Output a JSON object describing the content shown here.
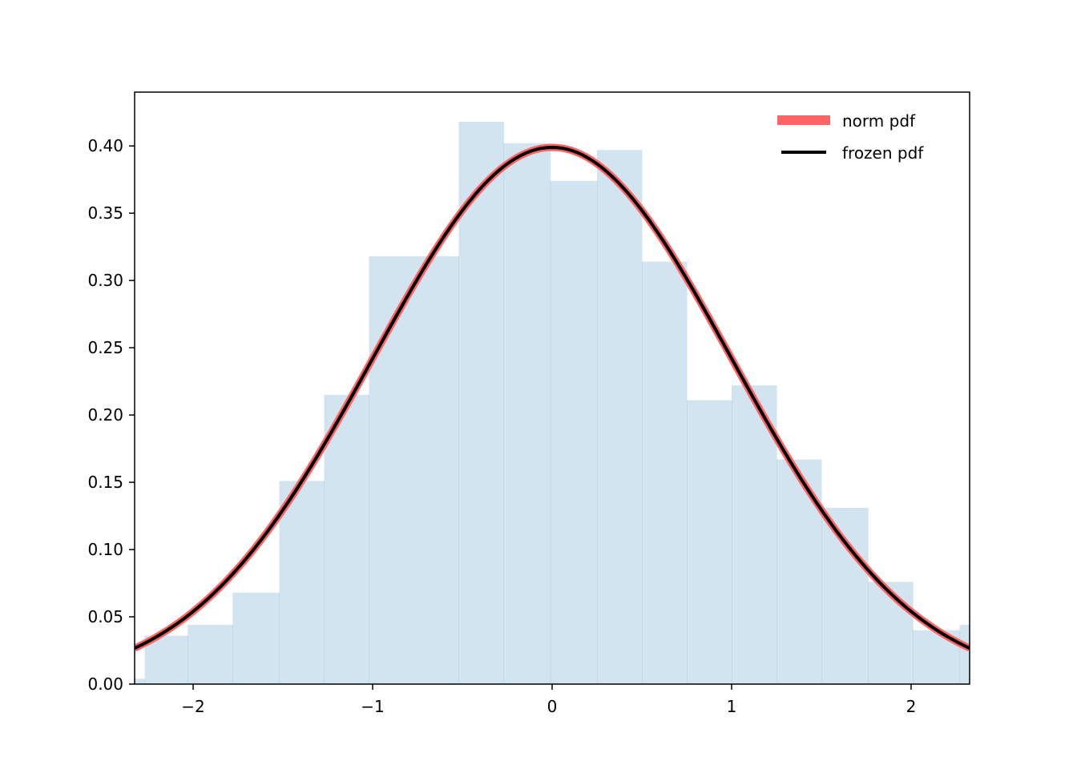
{
  "chart_data": {
    "type": "histogram",
    "title": "",
    "xlabel": "",
    "ylabel": "",
    "xlim": [
      -2.326,
      2.326
    ],
    "ylim": [
      0,
      0.44
    ],
    "x_ticks": [
      {
        "value": -2,
        "label": "−2"
      },
      {
        "value": -1,
        "label": "−1"
      },
      {
        "value": 0,
        "label": "0"
      },
      {
        "value": 1,
        "label": "1"
      },
      {
        "value": 2,
        "label": "2"
      }
    ],
    "y_ticks": [
      {
        "value": 0.0,
        "label": "0.00"
      },
      {
        "value": 0.05,
        "label": "0.05"
      },
      {
        "value": 0.1,
        "label": "0.10"
      },
      {
        "value": 0.15,
        "label": "0.15"
      },
      {
        "value": 0.2,
        "label": "0.20"
      },
      {
        "value": 0.25,
        "label": "0.25"
      },
      {
        "value": 0.3,
        "label": "0.30"
      },
      {
        "value": 0.35,
        "label": "0.35"
      },
      {
        "value": 0.4,
        "label": "0.40"
      }
    ],
    "histogram": {
      "color": "#1f77b4",
      "opacity": 0.2,
      "bins": [
        {
          "x0": -2.38,
          "x1": -2.27,
          "density": 0.004
        },
        {
          "x0": -2.27,
          "x1": -2.03,
          "density": 0.036
        },
        {
          "x0": -2.03,
          "x1": -1.78,
          "density": 0.044
        },
        {
          "x0": -1.78,
          "x1": -1.52,
          "density": 0.068
        },
        {
          "x0": -1.52,
          "x1": -1.27,
          "density": 0.151
        },
        {
          "x0": -1.27,
          "x1": -1.02,
          "density": 0.215
        },
        {
          "x0": -1.02,
          "x1": -0.52,
          "density": 0.318
        },
        {
          "x0": -0.52,
          "x1": -0.27,
          "density": 0.418
        },
        {
          "x0": -0.27,
          "x1": -0.01,
          "density": 0.402
        },
        {
          "x0": -0.01,
          "x1": 0.25,
          "density": 0.374
        },
        {
          "x0": 0.25,
          "x1": 0.5,
          "density": 0.397
        },
        {
          "x0": 0.5,
          "x1": 0.75,
          "density": 0.314
        },
        {
          "x0": 0.75,
          "x1": 1.0,
          "density": 0.211
        },
        {
          "x0": 1.0,
          "x1": 1.25,
          "density": 0.222
        },
        {
          "x0": 1.25,
          "x1": 1.5,
          "density": 0.167
        },
        {
          "x0": 1.5,
          "x1": 1.76,
          "density": 0.131
        },
        {
          "x0": 1.76,
          "x1": 2.01,
          "density": 0.076
        },
        {
          "x0": 2.01,
          "x1": 2.27,
          "density": 0.04
        },
        {
          "x0": 2.27,
          "x1": 2.4,
          "density": 0.044
        }
      ]
    },
    "series": [
      {
        "name": "norm pdf",
        "color": "#ff6363",
        "function": "normal_pdf",
        "mean": 0,
        "std": 1
      },
      {
        "name": "frozen pdf",
        "color": "#000000",
        "function": "normal_pdf",
        "mean": 0,
        "std": 1
      }
    ],
    "legend": {
      "position": "top-right"
    },
    "grid": false
  }
}
